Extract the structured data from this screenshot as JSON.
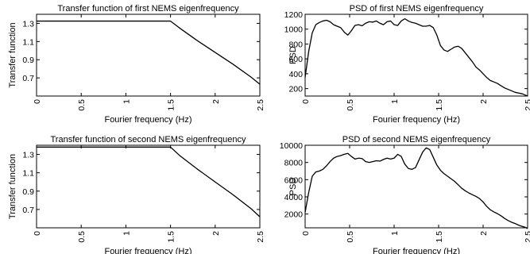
{
  "chart_data": [
    {
      "type": "line",
      "title": "Transfer function of first NEMS eigenfrequency",
      "xlabel": "Fourier frequency (Hz)",
      "ylabel": "Transfer function",
      "xlim": [
        0,
        2.5
      ],
      "ylim": [
        0.5,
        1.4
      ],
      "xticks": [
        0,
        0.5,
        1,
        1.5,
        2,
        2.5
      ],
      "xtick_labels": [
        "0",
        "0.5",
        "1",
        "1.5",
        "2",
        "2.5"
      ],
      "yticks": [
        0.7,
        0.9,
        1.1,
        1.3
      ],
      "ytick_labels": [
        "0.7",
        "0.9",
        "1.1",
        "1.3"
      ],
      "grid": false,
      "series": [
        {
          "color": "#000000",
          "x": [
            0,
            0.5,
            1.0,
            1.4,
            1.5,
            1.6,
            1.8,
            2.0,
            2.2,
            2.4,
            2.5
          ],
          "y": [
            1.325,
            1.325,
            1.325,
            1.325,
            1.325,
            1.25,
            1.11,
            0.98,
            0.85,
            0.71,
            0.63
          ]
        }
      ]
    },
    {
      "type": "line",
      "title": "PSD of first NEMS eigenfrequency",
      "xlabel": "Fourier frequency (Hz)",
      "ylabel": "PSD",
      "xlim": [
        0,
        2.5
      ],
      "ylim": [
        100,
        1200
      ],
      "xticks": [
        0,
        0.5,
        1,
        1.5,
        2,
        2.5
      ],
      "xtick_labels": [
        "0",
        "0.5",
        "1",
        "1.5",
        "2",
        "2.5"
      ],
      "yticks": [
        200,
        400,
        600,
        800,
        1000,
        1200
      ],
      "ytick_labels": [
        "200",
        "400",
        "600",
        "800",
        "1000",
        "1200"
      ],
      "grid": false,
      "series": [
        {
          "color": "#000000",
          "x": [
            0,
            0.04,
            0.08,
            0.12,
            0.16,
            0.2,
            0.24,
            0.28,
            0.32,
            0.36,
            0.4,
            0.44,
            0.48,
            0.52,
            0.56,
            0.6,
            0.64,
            0.68,
            0.72,
            0.76,
            0.8,
            0.84,
            0.88,
            0.92,
            0.96,
            1.0,
            1.04,
            1.08,
            1.12,
            1.16,
            1.2,
            1.24,
            1.28,
            1.32,
            1.36,
            1.4,
            1.44,
            1.48,
            1.52,
            1.56,
            1.6,
            1.64,
            1.68,
            1.72,
            1.76,
            1.8,
            1.84,
            1.88,
            1.92,
            1.96,
            2.0,
            2.04,
            2.08,
            2.12,
            2.16,
            2.2,
            2.24,
            2.28,
            2.32,
            2.36,
            2.4,
            2.44,
            2.48,
            2.5
          ],
          "y": [
            350,
            700,
            950,
            1060,
            1090,
            1110,
            1120,
            1100,
            1060,
            1040,
            1020,
            960,
            920,
            980,
            1050,
            1060,
            1045,
            1080,
            1100,
            1095,
            1110,
            1080,
            1060,
            1100,
            1110,
            1060,
            1050,
            1110,
            1140,
            1110,
            1090,
            1080,
            1060,
            1040,
            1040,
            1050,
            1020,
            920,
            780,
            720,
            700,
            730,
            760,
            770,
            740,
            680,
            620,
            560,
            490,
            450,
            400,
            350,
            310,
            290,
            270,
            240,
            210,
            190,
            170,
            150,
            140,
            130,
            110,
            100
          ]
        }
      ]
    },
    {
      "type": "line",
      "title": "Transfer function of second NEMS eigenfrequency",
      "xlabel": "Fourier frequency (Hz)",
      "ylabel": "Transfer function",
      "xlim": [
        0,
        2.5
      ],
      "ylim": [
        0.5,
        1.4
      ],
      "xticks": [
        0,
        0.5,
        1,
        1.5,
        2,
        2.5
      ],
      "xtick_labels": [
        "0",
        "0.5",
        "1",
        "1.5",
        "2",
        "2.5"
      ],
      "yticks": [
        0.7,
        0.9,
        1.1,
        1.3
      ],
      "ytick_labels": [
        "0.7",
        "0.9",
        "1.1",
        "1.3"
      ],
      "grid": false,
      "series": [
        {
          "color": "#000000",
          "x": [
            0,
            0.5,
            1.0,
            1.4,
            1.5,
            1.6,
            1.8,
            2.0,
            2.2,
            2.4,
            2.5
          ],
          "y": [
            1.38,
            1.38,
            1.38,
            1.38,
            1.38,
            1.29,
            1.14,
            1.0,
            0.86,
            0.71,
            0.62
          ]
        }
      ]
    },
    {
      "type": "line",
      "title": "PSD of second NEMS eigenfrequency",
      "xlabel": "Fourier frequency (Hz)",
      "ylabel": "PSD",
      "xlim": [
        0,
        2.5
      ],
      "ylim": [
        400,
        10000
      ],
      "xticks": [
        0,
        0.5,
        1,
        1.5,
        2,
        2.5
      ],
      "xtick_labels": [
        "0",
        "0.5",
        "1",
        "1.5",
        "2",
        "2.5"
      ],
      "yticks": [
        2000,
        4000,
        6000,
        8000,
        10000
      ],
      "ytick_labels": [
        "2000",
        "4000",
        "6000",
        "8000",
        "10000"
      ],
      "grid": false,
      "series": [
        {
          "color": "#000000",
          "x": [
            0,
            0.04,
            0.08,
            0.12,
            0.16,
            0.2,
            0.24,
            0.28,
            0.32,
            0.36,
            0.4,
            0.44,
            0.48,
            0.52,
            0.56,
            0.6,
            0.64,
            0.68,
            0.72,
            0.76,
            0.8,
            0.84,
            0.88,
            0.92,
            0.96,
            1.0,
            1.04,
            1.08,
            1.12,
            1.16,
            1.2,
            1.24,
            1.28,
            1.32,
            1.36,
            1.4,
            1.44,
            1.48,
            1.52,
            1.56,
            1.6,
            1.64,
            1.68,
            1.72,
            1.76,
            1.8,
            1.84,
            1.88,
            1.92,
            1.96,
            2.0,
            2.04,
            2.08,
            2.12,
            2.16,
            2.2,
            2.24,
            2.28,
            2.32,
            2.36,
            2.4,
            2.44,
            2.48,
            2.5
          ],
          "y": [
            2200,
            4500,
            6400,
            6900,
            7000,
            7200,
            7600,
            8100,
            8500,
            8700,
            8800,
            8950,
            9050,
            8700,
            8400,
            8500,
            8450,
            8100,
            8000,
            8100,
            8200,
            8150,
            8350,
            8500,
            8400,
            8500,
            8950,
            8700,
            7800,
            7300,
            7200,
            7400,
            8300,
            9200,
            9700,
            9500,
            8600,
            7700,
            7100,
            6700,
            6400,
            6100,
            5800,
            5400,
            5000,
            4700,
            4450,
            4250,
            4050,
            3800,
            3400,
            2900,
            2500,
            2250,
            2050,
            1800,
            1500,
            1250,
            1050,
            900,
            700,
            560,
            430,
            300
          ]
        }
      ]
    }
  ]
}
